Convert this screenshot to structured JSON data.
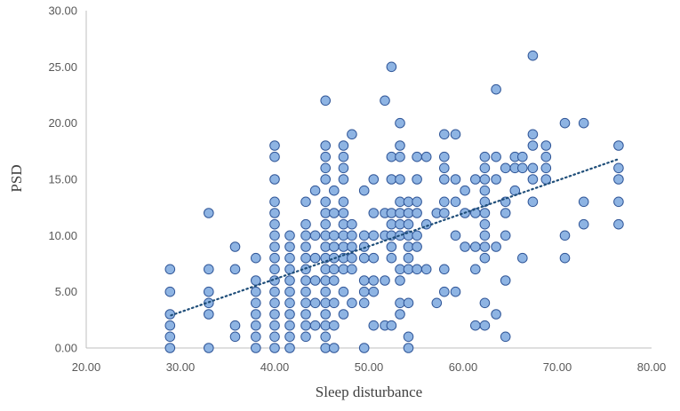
{
  "chart_data": {
    "type": "scatter",
    "title": "",
    "xlabel": "Sleep disturbance",
    "ylabel": "PSD",
    "xlim": [
      20,
      80
    ],
    "ylim": [
      0,
      30
    ],
    "x_ticks": [
      "20.00",
      "30.00",
      "40.00",
      "50.00",
      "60.00",
      "70.00",
      "80.00"
    ],
    "y_ticks": [
      "0.00",
      "5.00",
      "10.00",
      "15.00",
      "20.00",
      "25.00",
      "30.00"
    ],
    "grid": false,
    "legend": "none",
    "marker_fill": "#8eb4e3",
    "marker_edge": "#2f5597",
    "trendline": {
      "type": "linear",
      "style": "dotted",
      "color": "#1f4e79",
      "x": [
        29,
        76.5
      ],
      "y": [
        2.9,
        16.8
      ]
    },
    "points": [
      [
        28.9,
        0
      ],
      [
        28.9,
        1
      ],
      [
        28.9,
        2
      ],
      [
        28.9,
        3
      ],
      [
        28.9,
        5
      ],
      [
        28.9,
        7
      ],
      [
        33,
        0
      ],
      [
        33,
        3
      ],
      [
        33,
        4
      ],
      [
        33,
        5
      ],
      [
        33,
        7
      ],
      [
        33,
        12
      ],
      [
        35.8,
        1
      ],
      [
        35.8,
        2
      ],
      [
        35.8,
        7
      ],
      [
        35.8,
        9
      ],
      [
        38,
        0
      ],
      [
        38,
        1
      ],
      [
        38,
        2
      ],
      [
        38,
        3
      ],
      [
        38,
        4
      ],
      [
        38,
        5
      ],
      [
        38,
        6
      ],
      [
        38,
        8
      ],
      [
        40,
        0
      ],
      [
        40,
        1
      ],
      [
        40,
        2
      ],
      [
        40,
        3
      ],
      [
        40,
        4
      ],
      [
        40,
        5
      ],
      [
        40,
        6
      ],
      [
        40,
        7
      ],
      [
        40,
        8
      ],
      [
        40,
        9
      ],
      [
        40,
        10
      ],
      [
        40,
        11
      ],
      [
        40,
        12
      ],
      [
        40,
        13
      ],
      [
        40,
        15
      ],
      [
        40,
        17
      ],
      [
        40,
        18
      ],
      [
        41.6,
        0
      ],
      [
        41.6,
        1
      ],
      [
        41.6,
        2
      ],
      [
        41.6,
        3
      ],
      [
        41.6,
        4
      ],
      [
        41.6,
        5
      ],
      [
        41.6,
        6
      ],
      [
        41.6,
        7
      ],
      [
        41.6,
        8
      ],
      [
        41.6,
        9
      ],
      [
        41.6,
        10
      ],
      [
        43.3,
        1
      ],
      [
        43.3,
        2
      ],
      [
        43.3,
        3
      ],
      [
        43.3,
        4
      ],
      [
        43.3,
        5
      ],
      [
        43.3,
        6
      ],
      [
        43.3,
        7
      ],
      [
        43.3,
        8
      ],
      [
        43.3,
        9
      ],
      [
        43.3,
        10
      ],
      [
        43.3,
        11
      ],
      [
        43.3,
        13
      ],
      [
        44.3,
        2
      ],
      [
        44.3,
        4
      ],
      [
        44.3,
        6
      ],
      [
        44.3,
        8
      ],
      [
        44.3,
        10
      ],
      [
        44.3,
        14
      ],
      [
        45.4,
        0
      ],
      [
        45.4,
        1
      ],
      [
        45.4,
        2
      ],
      [
        45.4,
        3
      ],
      [
        45.4,
        4
      ],
      [
        45.4,
        5
      ],
      [
        45.4,
        6
      ],
      [
        45.4,
        7
      ],
      [
        45.4,
        8
      ],
      [
        45.4,
        9
      ],
      [
        45.4,
        10
      ],
      [
        45.4,
        11
      ],
      [
        45.4,
        12
      ],
      [
        45.4,
        13
      ],
      [
        45.4,
        15
      ],
      [
        45.4,
        16
      ],
      [
        45.4,
        17
      ],
      [
        45.4,
        18
      ],
      [
        45.4,
        22
      ],
      [
        46.3,
        0
      ],
      [
        46.3,
        2
      ],
      [
        46.3,
        4
      ],
      [
        46.3,
        6
      ],
      [
        46.3,
        7
      ],
      [
        46.3,
        8
      ],
      [
        46.3,
        9
      ],
      [
        46.3,
        10
      ],
      [
        46.3,
        12
      ],
      [
        46.3,
        14
      ],
      [
        47.3,
        3
      ],
      [
        47.3,
        5
      ],
      [
        47.3,
        7
      ],
      [
        47.3,
        8
      ],
      [
        47.3,
        9
      ],
      [
        47.3,
        10
      ],
      [
        47.3,
        11
      ],
      [
        47.3,
        12
      ],
      [
        47.3,
        13
      ],
      [
        47.3,
        15
      ],
      [
        47.3,
        16
      ],
      [
        47.3,
        17
      ],
      [
        47.3,
        18
      ],
      [
        48.2,
        4
      ],
      [
        48.2,
        7
      ],
      [
        48.2,
        8
      ],
      [
        48.2,
        9
      ],
      [
        48.2,
        10
      ],
      [
        48.2,
        11
      ],
      [
        48.2,
        19
      ],
      [
        49.5,
        0
      ],
      [
        49.5,
        4
      ],
      [
        49.5,
        5
      ],
      [
        49.5,
        6
      ],
      [
        49.5,
        8
      ],
      [
        49.5,
        9
      ],
      [
        49.5,
        10
      ],
      [
        49.5,
        14
      ],
      [
        50.5,
        2
      ],
      [
        50.5,
        5
      ],
      [
        50.5,
        6
      ],
      [
        50.5,
        8
      ],
      [
        50.5,
        10
      ],
      [
        50.5,
        12
      ],
      [
        50.5,
        15
      ],
      [
        51.7,
        2
      ],
      [
        51.7,
        6
      ],
      [
        51.7,
        10
      ],
      [
        51.7,
        12
      ],
      [
        51.7,
        22
      ],
      [
        52.4,
        2
      ],
      [
        52.4,
        8
      ],
      [
        52.4,
        9
      ],
      [
        52.4,
        10
      ],
      [
        52.4,
        11
      ],
      [
        52.4,
        12
      ],
      [
        52.4,
        15
      ],
      [
        52.4,
        17
      ],
      [
        52.4,
        25
      ],
      [
        53.3,
        3
      ],
      [
        53.3,
        4
      ],
      [
        53.3,
        6
      ],
      [
        53.3,
        7
      ],
      [
        53.3,
        10
      ],
      [
        53.3,
        11
      ],
      [
        53.3,
        12
      ],
      [
        53.3,
        13
      ],
      [
        53.3,
        15
      ],
      [
        53.3,
        17
      ],
      [
        53.3,
        18
      ],
      [
        53.3,
        20
      ],
      [
        54.2,
        0
      ],
      [
        54.2,
        1
      ],
      [
        54.2,
        4
      ],
      [
        54.2,
        7
      ],
      [
        54.2,
        8
      ],
      [
        54.2,
        9
      ],
      [
        54.2,
        10
      ],
      [
        54.2,
        11
      ],
      [
        54.2,
        12
      ],
      [
        54.2,
        13
      ],
      [
        55.1,
        7
      ],
      [
        55.1,
        9
      ],
      [
        55.1,
        10
      ],
      [
        55.1,
        12
      ],
      [
        55.1,
        13
      ],
      [
        55.1,
        15
      ],
      [
        55.1,
        17
      ],
      [
        56.1,
        7
      ],
      [
        56.1,
        11
      ],
      [
        56.1,
        17
      ],
      [
        57.2,
        4
      ],
      [
        57.2,
        12
      ],
      [
        58,
        5
      ],
      [
        58,
        7
      ],
      [
        58,
        12
      ],
      [
        58,
        13
      ],
      [
        58,
        15
      ],
      [
        58,
        16
      ],
      [
        58,
        17
      ],
      [
        58,
        19
      ],
      [
        59.2,
        5
      ],
      [
        59.2,
        10
      ],
      [
        59.2,
        13
      ],
      [
        59.2,
        15
      ],
      [
        59.2,
        19
      ],
      [
        60.2,
        9
      ],
      [
        60.2,
        12
      ],
      [
        60.2,
        14
      ],
      [
        61.3,
        2
      ],
      [
        61.3,
        7
      ],
      [
        61.3,
        9
      ],
      [
        61.3,
        12
      ],
      [
        61.3,
        15
      ],
      [
        62.3,
        2
      ],
      [
        62.3,
        4
      ],
      [
        62.3,
        8
      ],
      [
        62.3,
        9
      ],
      [
        62.3,
        10
      ],
      [
        62.3,
        11
      ],
      [
        62.3,
        12
      ],
      [
        62.3,
        13
      ],
      [
        62.3,
        14
      ],
      [
        62.3,
        15
      ],
      [
        62.3,
        16
      ],
      [
        62.3,
        17
      ],
      [
        63.5,
        3
      ],
      [
        63.5,
        9
      ],
      [
        63.5,
        15
      ],
      [
        63.5,
        17
      ],
      [
        63.5,
        23
      ],
      [
        64.5,
        1
      ],
      [
        64.5,
        6
      ],
      [
        64.5,
        10
      ],
      [
        64.5,
        12
      ],
      [
        64.5,
        13
      ],
      [
        64.5,
        16
      ],
      [
        65.5,
        14
      ],
      [
        65.5,
        16
      ],
      [
        65.5,
        17
      ],
      [
        66.3,
        8
      ],
      [
        66.3,
        16
      ],
      [
        66.3,
        17
      ],
      [
        67.4,
        13
      ],
      [
        67.4,
        15
      ],
      [
        67.4,
        16
      ],
      [
        67.4,
        18
      ],
      [
        67.4,
        19
      ],
      [
        67.4,
        26
      ],
      [
        68.8,
        15
      ],
      [
        68.8,
        16
      ],
      [
        68.8,
        17
      ],
      [
        68.8,
        18
      ],
      [
        70.8,
        8
      ],
      [
        70.8,
        10
      ],
      [
        70.8,
        20
      ],
      [
        72.8,
        11
      ],
      [
        72.8,
        13
      ],
      [
        72.8,
        20
      ],
      [
        76.5,
        11
      ],
      [
        76.5,
        13
      ],
      [
        76.5,
        15
      ],
      [
        76.5,
        16
      ],
      [
        76.5,
        18
      ]
    ]
  }
}
